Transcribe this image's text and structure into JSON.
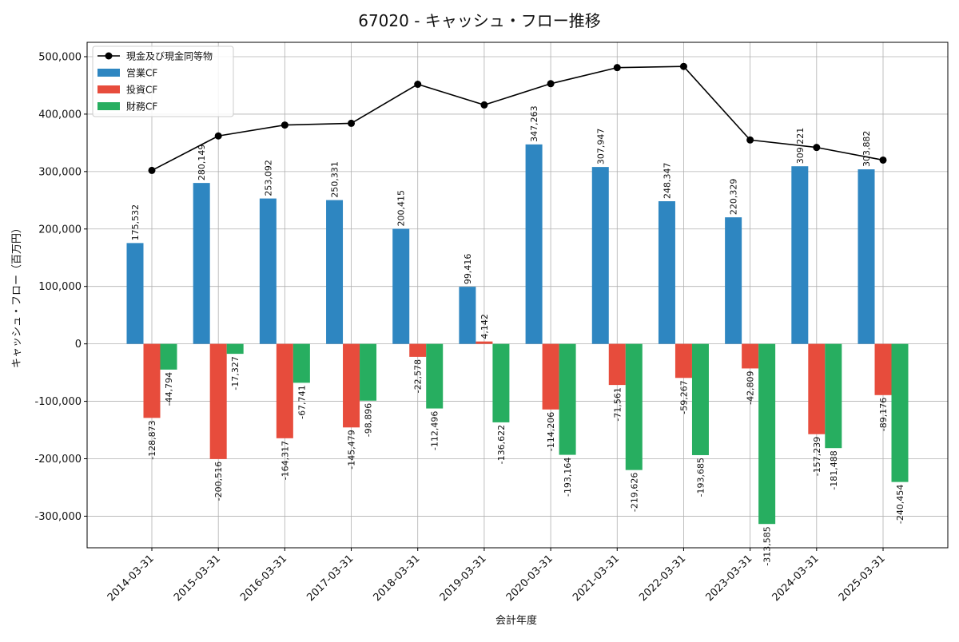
{
  "chart_data": {
    "type": "bar",
    "title": "67020 - キャッシュ・フロー推移",
    "xlabel": "会計年度",
    "ylabel": "キャッシュ・フロー（百万円）",
    "ylim": [
      -355000,
      525000
    ],
    "yticks": [
      -300000,
      -200000,
      -100000,
      0,
      100000,
      200000,
      300000,
      400000,
      500000
    ],
    "ytick_labels": [
      "-300,000",
      "-200,000",
      "-100,000",
      "0",
      "100,000",
      "200,000",
      "300,000",
      "400,000",
      "500,000"
    ],
    "grid": true,
    "legend_position": "top-left",
    "categories": [
      "2014-03-31",
      "2015-03-31",
      "2016-03-31",
      "2017-03-31",
      "2018-03-31",
      "2019-03-31",
      "2020-03-31",
      "2021-03-31",
      "2022-03-31",
      "2023-03-31",
      "2024-03-31",
      "2025-03-31"
    ],
    "series": [
      {
        "name": "営業CF",
        "kind": "bar",
        "color": "#2e86c1",
        "values": [
          175532,
          280149,
          253092,
          250331,
          200415,
          99416,
          347263,
          307947,
          248347,
          220329,
          309221,
          303882
        ],
        "labels": [
          "175,532",
          "280,149",
          "253,092",
          "250,331",
          "200,415",
          "99,416",
          "347,263",
          "307,947",
          "248,347",
          "220,329",
          "309,221",
          "303,882"
        ]
      },
      {
        "name": "投資CF",
        "kind": "bar",
        "color": "#e74c3c",
        "values": [
          -128873,
          -200516,
          -164317,
          -145479,
          -22578,
          4142,
          -114206,
          -71561,
          -59267,
          -42809,
          -157239,
          -89176
        ],
        "labels": [
          "-128,873",
          "-200,516",
          "-164,317",
          "-145,479",
          "-22,578",
          "4,142",
          "-114,206",
          "-71,561",
          "-59,267",
          "-42,809",
          "-157,239",
          "-89,176"
        ]
      },
      {
        "name": "財務CF",
        "kind": "bar",
        "color": "#27ae60",
        "values": [
          -44794,
          -17327,
          -67741,
          -98896,
          -112496,
          -136622,
          -193164,
          -219626,
          -193685,
          -313585,
          -181488,
          -240454
        ],
        "labels": [
          "-44,794",
          "-17,327",
          "-67,741",
          "-98,896",
          "-112,496",
          "-136,622",
          "-193,164",
          "-219,626",
          "-193,685",
          "-313,585",
          "-181,488",
          "-240,454"
        ]
      },
      {
        "name": "現金及び現金同等物",
        "kind": "line",
        "color": "#000000",
        "values": [
          302000,
          362000,
          381000,
          384000,
          452000,
          416000,
          453000,
          481000,
          483000,
          355000,
          342000,
          320000
        ]
      }
    ]
  }
}
